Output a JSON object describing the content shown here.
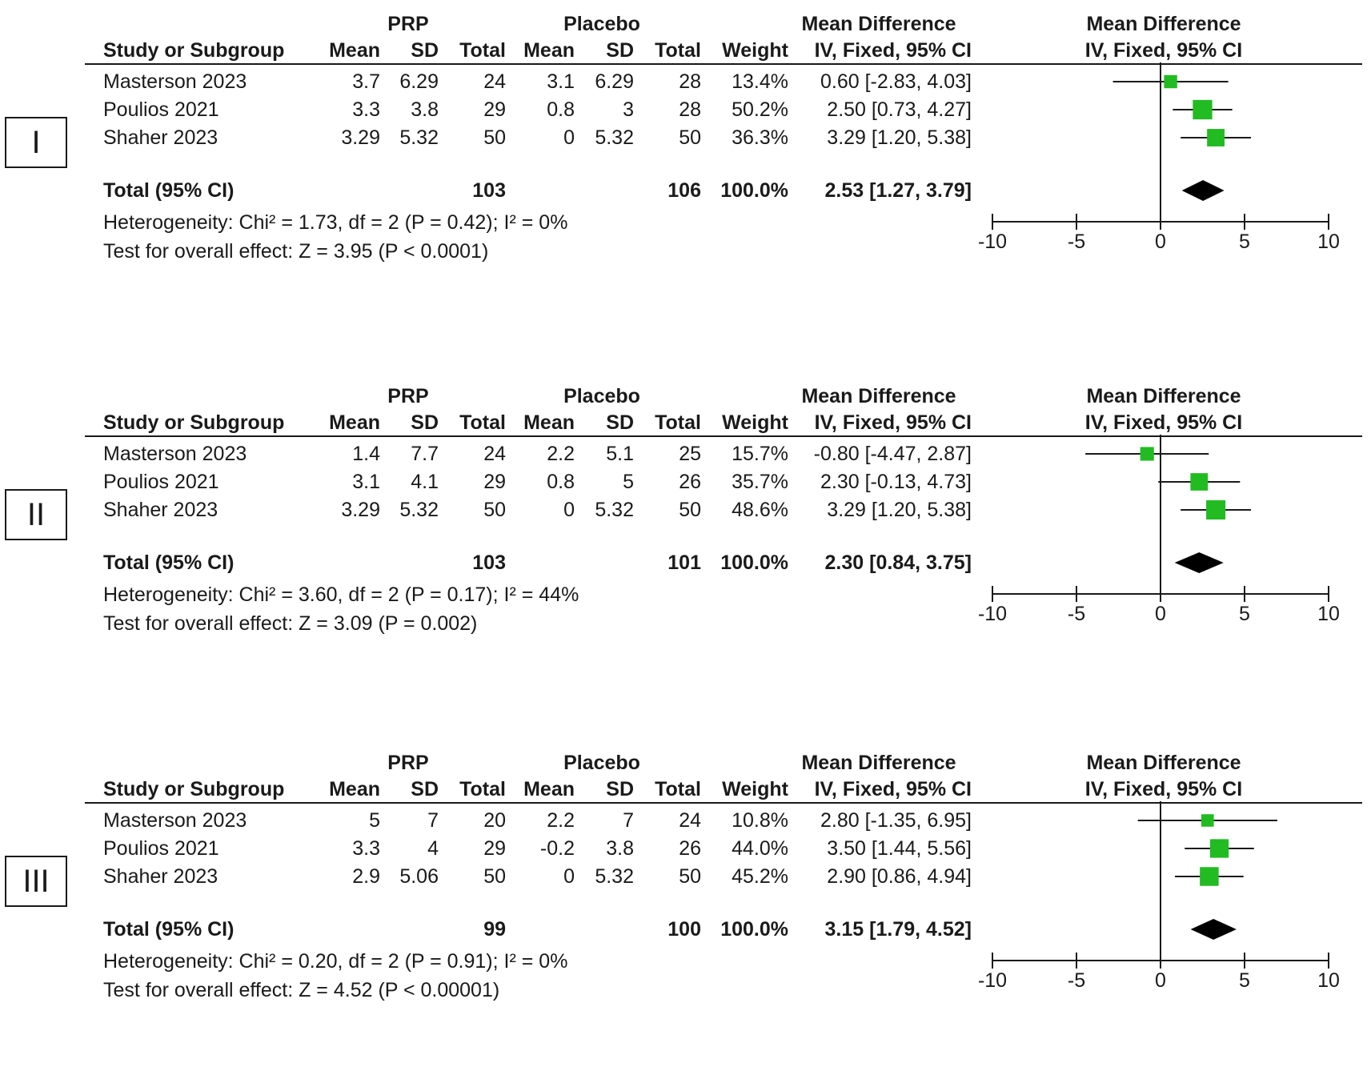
{
  "headers": {
    "prp": "PRP",
    "placebo": "Placebo",
    "mean_difference": "Mean Difference",
    "study": "Study or Subgroup",
    "mean": "Mean",
    "sd": "SD",
    "total": "Total",
    "weight": "Weight",
    "method": "IV, Fixed, 95% CI"
  },
  "colors": {
    "study_marker": "#22bb22",
    "diamond": "#000000",
    "line": "#1a1a1a"
  },
  "panels": [
    {
      "label": "I",
      "rows": [
        {
          "study": "Masterson 2023",
          "prp_mean": "3.7",
          "prp_sd": "6.29",
          "prp_total": "24",
          "pl_mean": "3.1",
          "pl_sd": "6.29",
          "pl_total": "28",
          "weight": "13.4%",
          "ci": "0.60 [-2.83, 4.03]"
        },
        {
          "study": "Poulios 2021",
          "prp_mean": "3.3",
          "prp_sd": "3.8",
          "prp_total": "29",
          "pl_mean": "0.8",
          "pl_sd": "3",
          "pl_total": "28",
          "weight": "50.2%",
          "ci": "2.50 [0.73, 4.27]"
        },
        {
          "study": "Shaher 2023",
          "prp_mean": "3.29",
          "prp_sd": "5.32",
          "prp_total": "50",
          "pl_mean": "0",
          "pl_sd": "5.32",
          "pl_total": "50",
          "weight": "36.3%",
          "ci": "3.29 [1.20, 5.38]"
        }
      ],
      "total": {
        "label": "Total (95% CI)",
        "prp_total": "103",
        "pl_total": "106",
        "weight": "100.0%",
        "ci": "2.53 [1.27, 3.79]"
      },
      "heterogeneity": "Heterogeneity: Chi² = 1.73, df = 2 (P = 0.42); I² = 0%",
      "overall": "Test for overall effect: Z = 3.95 (P < 0.0001)"
    },
    {
      "label": "II",
      "rows": [
        {
          "study": "Masterson 2023",
          "prp_mean": "1.4",
          "prp_sd": "7.7",
          "prp_total": "24",
          "pl_mean": "2.2",
          "pl_sd": "5.1",
          "pl_total": "25",
          "weight": "15.7%",
          "ci": "-0.80 [-4.47, 2.87]"
        },
        {
          "study": "Poulios 2021",
          "prp_mean": "3.1",
          "prp_sd": "4.1",
          "prp_total": "29",
          "pl_mean": "0.8",
          "pl_sd": "5",
          "pl_total": "26",
          "weight": "35.7%",
          "ci": "2.30 [-0.13, 4.73]"
        },
        {
          "study": "Shaher 2023",
          "prp_mean": "3.29",
          "prp_sd": "5.32",
          "prp_total": "50",
          "pl_mean": "0",
          "pl_sd": "5.32",
          "pl_total": "50",
          "weight": "48.6%",
          "ci": "3.29 [1.20, 5.38]"
        }
      ],
      "total": {
        "label": "Total (95% CI)",
        "prp_total": "103",
        "pl_total": "101",
        "weight": "100.0%",
        "ci": "2.30 [0.84, 3.75]"
      },
      "heterogeneity": "Heterogeneity: Chi² = 3.60, df = 2 (P = 0.17); I² = 44%",
      "overall": "Test for overall effect: Z = 3.09 (P = 0.002)"
    },
    {
      "label": "III",
      "rows": [
        {
          "study": "Masterson 2023",
          "prp_mean": "5",
          "prp_sd": "7",
          "prp_total": "20",
          "pl_mean": "2.2",
          "pl_sd": "7",
          "pl_total": "24",
          "weight": "10.8%",
          "ci": "2.80 [-1.35, 6.95]"
        },
        {
          "study": "Poulios 2021",
          "prp_mean": "3.3",
          "prp_sd": "4",
          "prp_total": "29",
          "pl_mean": "-0.2",
          "pl_sd": "3.8",
          "pl_total": "26",
          "weight": "44.0%",
          "ci": "3.50 [1.44, 5.56]"
        },
        {
          "study": "Shaher 2023",
          "prp_mean": "2.9",
          "prp_sd": "5.06",
          "prp_total": "50",
          "pl_mean": "0",
          "pl_sd": "5.32",
          "pl_total": "50",
          "weight": "45.2%",
          "ci": "2.90 [0.86, 4.94]"
        }
      ],
      "total": {
        "label": "Total (95% CI)",
        "prp_total": "99",
        "pl_total": "100",
        "weight": "100.0%",
        "ci": "3.15 [1.79, 4.52]"
      },
      "heterogeneity": "Heterogeneity: Chi² = 0.20, df = 2 (P = 0.91); I² = 0%",
      "overall": "Test for overall effect: Z = 4.52 (P < 0.00001)"
    }
  ],
  "chart_data": [
    {
      "type": "forest",
      "title": "Mean Difference",
      "xlabel": "IV, Fixed, 95% CI",
      "xlim": [
        -10,
        10
      ],
      "ticks": [
        "-10",
        "-5",
        "0",
        "5",
        "10"
      ],
      "studies": [
        {
          "name": "Masterson 2023",
          "md": 0.6,
          "lo": -2.83,
          "hi": 4.03,
          "weight": 13.4
        },
        {
          "name": "Poulios 2021",
          "md": 2.5,
          "lo": 0.73,
          "hi": 4.27,
          "weight": 50.2
        },
        {
          "name": "Shaher 2023",
          "md": 3.29,
          "lo": 1.2,
          "hi": 5.38,
          "weight": 36.3
        }
      ],
      "pooled": {
        "md": 2.53,
        "lo": 1.27,
        "hi": 3.79
      }
    },
    {
      "type": "forest",
      "title": "Mean Difference",
      "xlabel": "IV, Fixed, 95% CI",
      "xlim": [
        -10,
        10
      ],
      "ticks": [
        "-10",
        "-5",
        "0",
        "5",
        "10"
      ],
      "studies": [
        {
          "name": "Masterson 2023",
          "md": -0.8,
          "lo": -4.47,
          "hi": 2.87,
          "weight": 15.7
        },
        {
          "name": "Poulios 2021",
          "md": 2.3,
          "lo": -0.13,
          "hi": 4.73,
          "weight": 35.7
        },
        {
          "name": "Shaher 2023",
          "md": 3.29,
          "lo": 1.2,
          "hi": 5.38,
          "weight": 48.6
        }
      ],
      "pooled": {
        "md": 2.3,
        "lo": 0.84,
        "hi": 3.75
      }
    },
    {
      "type": "forest",
      "title": "Mean Difference",
      "xlabel": "IV, Fixed, 95% CI",
      "xlim": [
        -10,
        10
      ],
      "ticks": [
        "-10",
        "-5",
        "0",
        "5",
        "10"
      ],
      "studies": [
        {
          "name": "Masterson 2023",
          "md": 2.8,
          "lo": -1.35,
          "hi": 6.95,
          "weight": 10.8
        },
        {
          "name": "Poulios 2021",
          "md": 3.5,
          "lo": 1.44,
          "hi": 5.56,
          "weight": 44.0
        },
        {
          "name": "Shaher 2023",
          "md": 2.9,
          "lo": 0.86,
          "hi": 4.94,
          "weight": 45.2
        }
      ],
      "pooled": {
        "md": 3.15,
        "lo": 1.79,
        "hi": 4.52
      }
    }
  ]
}
